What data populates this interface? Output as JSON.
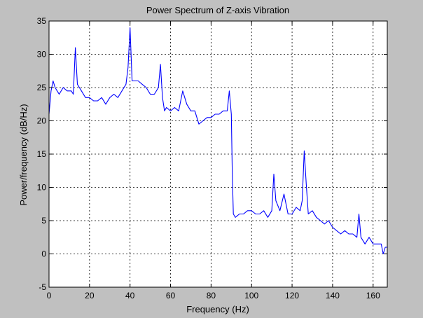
{
  "chart_data": {
    "type": "line",
    "title": "Power Spectrum of Z-axis Vibration",
    "xlabel": "Frequency (Hz)",
    "ylabel": "Power/frequency (dB/Hz)",
    "xlim": [
      0,
      167
    ],
    "ylim": [
      -5,
      35
    ],
    "xticks": [
      0,
      20,
      40,
      60,
      80,
      100,
      120,
      140,
      160
    ],
    "xtick_labels": [
      "0",
      "20",
      "40",
      "60",
      "80",
      "100",
      "120",
      "140",
      "160"
    ],
    "yticks": [
      -5,
      0,
      5,
      10,
      15,
      20,
      25,
      30,
      35
    ],
    "ytick_labels": [
      "-5",
      "0",
      "5",
      "10",
      "15",
      "20",
      "25",
      "30",
      "35"
    ],
    "grid": true,
    "legend": "none",
    "colors": {
      "figure_bg": "#c0c0c0",
      "axes_bg": "#ffffff",
      "series": "#0000ff",
      "grid": "#000000"
    },
    "series": [
      {
        "name": "",
        "x": [
          0,
          1,
          2,
          3,
          4,
          5,
          7,
          9,
          11,
          12,
          13,
          14,
          16,
          18,
          20,
          22,
          24,
          26,
          28,
          30,
          32,
          34,
          36,
          38,
          39,
          40,
          41,
          42,
          44,
          46,
          48,
          50,
          52,
          54,
          55,
          56,
          57,
          58,
          60,
          62,
          64,
          66,
          68,
          70,
          72,
          74,
          76,
          78,
          80,
          82,
          84,
          86,
          88,
          89,
          90,
          90.5,
          91,
          92,
          94,
          96,
          98,
          100,
          102,
          104,
          106,
          108,
          110,
          111,
          112,
          114,
          116,
          118,
          120,
          122,
          124,
          125,
          126,
          127,
          128,
          130,
          132,
          134,
          136,
          138,
          140,
          142,
          144,
          146,
          148,
          150,
          152,
          153,
          154,
          156,
          158,
          160,
          162,
          164,
          165,
          166,
          167
        ],
        "y": [
          21,
          24.5,
          26,
          25,
          24.5,
          24,
          25,
          24.5,
          24.5,
          24,
          31,
          25.5,
          24.5,
          23.5,
          23.5,
          23,
          23,
          23.5,
          22.5,
          23.5,
          24,
          23.5,
          24.5,
          25.5,
          28,
          34,
          26,
          26,
          26,
          25.5,
          25,
          24,
          24,
          25,
          28.5,
          23.5,
          21.5,
          22,
          21.5,
          22,
          21.5,
          24.5,
          22.5,
          21.5,
          21.5,
          19.5,
          20,
          20.5,
          20.5,
          21,
          21,
          21.5,
          21.5,
          24.5,
          21,
          12,
          6,
          5.5,
          6,
          6,
          6.5,
          6.5,
          6,
          6,
          6.5,
          5.5,
          6.5,
          12,
          8,
          6.5,
          9,
          6,
          6,
          7,
          6.5,
          8,
          15.5,
          10.5,
          6,
          6.5,
          5.5,
          5,
          4.5,
          5,
          4,
          3.5,
          3,
          3.5,
          3,
          3,
          2.5,
          6,
          2.5,
          1.5,
          2.5,
          1.5,
          1.5,
          1.5,
          0,
          1,
          1
        ]
      }
    ]
  }
}
